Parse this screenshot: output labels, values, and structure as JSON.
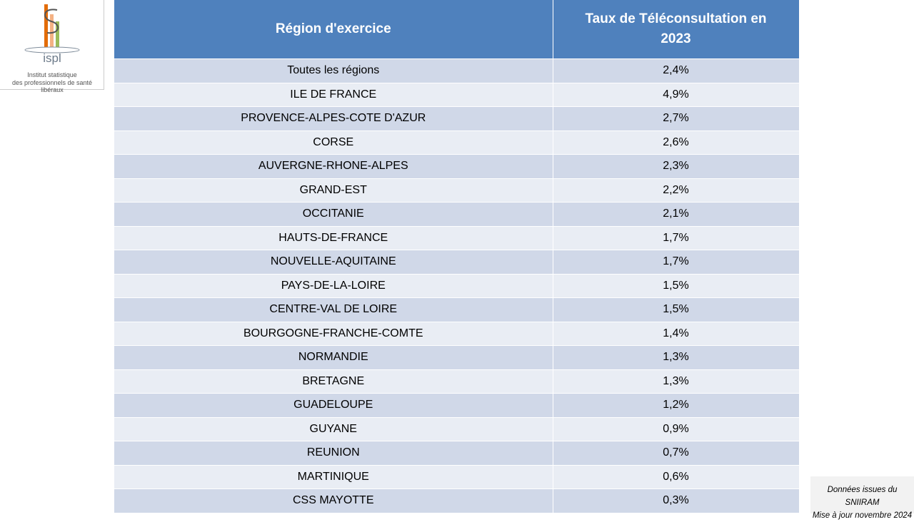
{
  "logo": {
    "brand": "ispl",
    "line1": "Institut statistique",
    "line2": "des professionnels de santé libéraux"
  },
  "table": {
    "headers": [
      "Région d'exercice",
      "Taux de Téléconsultation en 2023"
    ],
    "rows": [
      [
        "Toutes les régions",
        "2,4%"
      ],
      [
        "ILE DE FRANCE",
        "4,9%"
      ],
      [
        "PROVENCE-ALPES-COTE D'AZUR",
        "2,7%"
      ],
      [
        "CORSE",
        "2,6%"
      ],
      [
        "AUVERGNE-RHONE-ALPES",
        "2,3%"
      ],
      [
        "GRAND-EST",
        "2,2%"
      ],
      [
        "OCCITANIE",
        "2,1%"
      ],
      [
        "HAUTS-DE-FRANCE",
        "1,7%"
      ],
      [
        "NOUVELLE-AQUITAINE",
        "1,7%"
      ],
      [
        "PAYS-DE-LA-LOIRE",
        "1,5%"
      ],
      [
        "CENTRE-VAL DE LOIRE",
        "1,5%"
      ],
      [
        "BOURGOGNE-FRANCHE-COMTE",
        "1,4%"
      ],
      [
        "NORMANDIE",
        "1,3%"
      ],
      [
        "BRETAGNE",
        "1,3%"
      ],
      [
        "GUADELOUPE",
        "1,2%"
      ],
      [
        "GUYANE",
        "0,9%"
      ],
      [
        "REUNION",
        "0,7%"
      ],
      [
        "MARTINIQUE",
        "0,6%"
      ],
      [
        "CSS MAYOTTE",
        "0,3%"
      ]
    ]
  },
  "note": {
    "line1": "Données issues du SNIIRAM",
    "line2": "Mise à jour novembre 2024"
  }
}
